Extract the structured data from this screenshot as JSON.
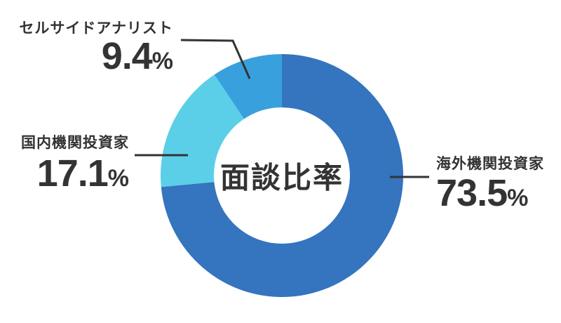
{
  "chart_data": {
    "type": "pie",
    "subtype": "donut",
    "title": "面談比率",
    "unit": "%",
    "total": 100.0,
    "start_angle_deg": 0,
    "direction": "clockwise",
    "legend": "none",
    "segments": [
      {
        "label": "海外機関投資家",
        "value": 73.5,
        "display": "73.5",
        "unit": "%",
        "color": "#3574be",
        "label_position": "right"
      },
      {
        "label": "国内機関投資家",
        "value": 17.1,
        "display": "17.1",
        "unit": "%",
        "color": "#5bcfe8",
        "label_position": "left"
      },
      {
        "label": "セルサイドアナリスト",
        "value": 9.4,
        "display": "9.4",
        "unit": "%",
        "color": "#39a0de",
        "label_position": "top-left"
      }
    ],
    "colors": {
      "text": "#333333",
      "leader_line": "#333333",
      "background": "#ffffff"
    }
  }
}
